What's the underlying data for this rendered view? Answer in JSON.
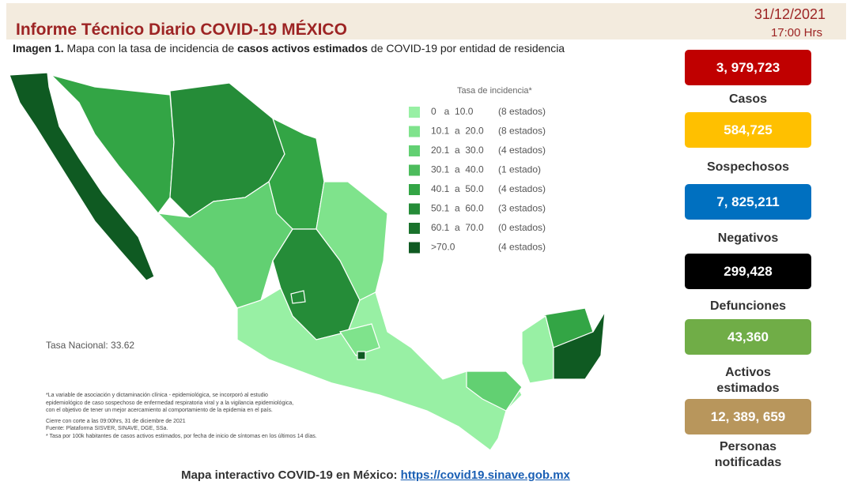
{
  "header": {
    "title": "Informe Técnico Diario COVID-19 MÉXICO",
    "date": "31/12/2021",
    "time": "17:00 Hrs"
  },
  "caption": {
    "prefix": "Imagen 1.",
    "text_before": "Mapa con la tasa de incidencia de",
    "bold": "casos activos estimados",
    "text_after": "de COVID-19 por entidad de residencia"
  },
  "legend": {
    "title": "Tasa de incidencia*",
    "items": [
      {
        "range": "0   a  10.0",
        "count": "(8 estados)",
        "color": "#98f0a4"
      },
      {
        "range": "10.1  a  20.0",
        "count": "(8 estados)",
        "color": "#7fe38c"
      },
      {
        "range": "20.1  a  30.0",
        "count": "(4 estados)",
        "color": "#62d072"
      },
      {
        "range": "30.1  a  40.0",
        "count": "(1 estado)",
        "color": "#4cbc5c"
      },
      {
        "range": "40.1  a  50.0",
        "count": "(4 estados)",
        "color": "#33a545"
      },
      {
        "range": "50.1  a  60.0",
        "count": "(3 estados)",
        "color": "#258c38"
      },
      {
        "range": "60.1  a  70.0",
        "count": "(0 estados)",
        "color": "#1a722c"
      },
      {
        "range": ">70.0",
        "count": "(4 estados)",
        "color": "#0f5a22"
      }
    ]
  },
  "national_rate": "Tasa Nacional: 33.62",
  "notes": [
    "*La variable de asociación y dictaminación clínica - epidemiológica, se incorporó al estudio",
    "epidemiológico de caso sospechoso de enfermedad respiratoria viral y a la vigilancia epidemiológica,",
    "con el objetivo de tener un mejor acercamiento al comportamiento de la epidemia en el país.",
    "Cierre con corte a las 09:00hrs, 31 de diciembre de 2021",
    "Fuente: Plataforma SISVER, SINAVE, DGE, SSa.",
    "* Tasa por 100k habitantes de casos activos estimados, por fecha de inicio de síntomas en los últimos 14 días."
  ],
  "stats": [
    {
      "value": "3, 979,723",
      "label": "Casos",
      "color": "#c00000"
    },
    {
      "value": "584,725",
      "label": "Sospechosos",
      "color": "#ffc000"
    },
    {
      "value": "7, 825,211",
      "label": "Negativos",
      "color": "#0070c0"
    },
    {
      "value": "299,428",
      "label": "Defunciones",
      "color": "#000000"
    },
    {
      "value": "43,360",
      "label": "Activos estimados",
      "color": "#70ad47"
    },
    {
      "value": "12, 389, 659",
      "label": "Personas notificadas",
      "color": "#b8965c"
    }
  ],
  "footer": {
    "text": "Mapa interactivo COVID-19 en México:",
    "link": "https://covid19.sinave.gob.mx"
  }
}
